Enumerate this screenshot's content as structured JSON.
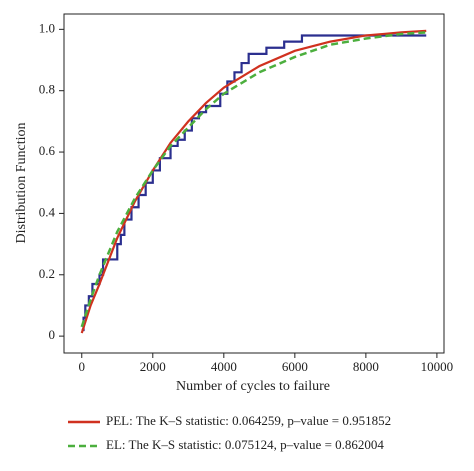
{
  "chart_data": {
    "type": "line",
    "x_label": "Number of cycles to failure",
    "y_label": "Distribution Function",
    "xlim": [
      -500,
      10200
    ],
    "ylim": [
      -0.055,
      1.05
    ],
    "xticks": [
      0,
      2000,
      4000,
      6000,
      8000,
      10000
    ],
    "yticks": [
      0,
      0.2,
      0.4,
      0.6,
      0.8,
      {
        "value": 1,
        "label": "1.0"
      }
    ],
    "legend": "bottom",
    "series": [
      {
        "color": "#2b2f8f",
        "step": "post",
        "dash": false,
        "x": [
          0,
          50,
          100,
          200,
          300,
          500,
          600,
          900,
          1000,
          1100,
          1200,
          1400,
          1600,
          1800,
          2000,
          2200,
          2500,
          2700,
          2900,
          3100,
          3300,
          3500,
          3900,
          4100,
          4300,
          4500,
          4700,
          5200,
          5700,
          6200,
          9700
        ],
        "values": [
          0.02,
          0.06,
          0.1,
          0.13,
          0.17,
          0.2,
          0.25,
          0.25,
          0.3,
          0.33,
          0.38,
          0.42,
          0.46,
          0.5,
          0.54,
          0.58,
          0.62,
          0.64,
          0.67,
          0.71,
          0.73,
          0.75,
          0.79,
          0.83,
          0.86,
          0.89,
          0.92,
          0.94,
          0.96,
          0.98,
          0.98
        ]
      },
      {
        "name": "PEL: The K–S statistic: 0.064259, p–value = 0.951852",
        "color": "#d0311f",
        "dash": false,
        "x": [
          0,
          250,
          500,
          1000,
          1500,
          2000,
          2500,
          3000,
          3500,
          4000,
          5000,
          6000,
          7000,
          8000,
          9000,
          9700
        ],
        "values": [
          0.01,
          0.1,
          0.17,
          0.32,
          0.44,
          0.54,
          0.63,
          0.7,
          0.76,
          0.81,
          0.88,
          0.93,
          0.96,
          0.98,
          0.99,
          0.995
        ]
      },
      {
        "name": "EL: The K–S statistic: 0.075124, p–value = 0.862004",
        "color": "#4caf3e",
        "dash": true,
        "x": [
          0,
          250,
          500,
          1000,
          1500,
          2000,
          2500,
          3000,
          3500,
          4000,
          5000,
          6000,
          7000,
          8000,
          9000,
          9700
        ],
        "values": [
          0.03,
          0.12,
          0.2,
          0.34,
          0.45,
          0.54,
          0.62,
          0.68,
          0.74,
          0.79,
          0.86,
          0.91,
          0.95,
          0.97,
          0.985,
          0.99
        ]
      }
    ]
  }
}
